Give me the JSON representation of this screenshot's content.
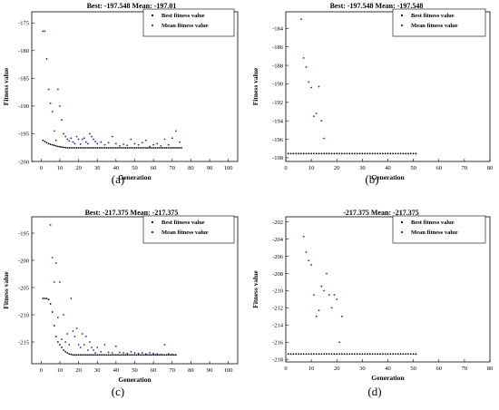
{
  "chart_data": [
    {
      "type": "scatter",
      "title": "Best: -197.548 Mean: -197.01",
      "xlabel": "Generation",
      "ylabel": "Fitness value",
      "xlim": [
        -5,
        105
      ],
      "ylim": [
        -200,
        -173
      ],
      "xticks": [
        0,
        10,
        20,
        30,
        40,
        50,
        60,
        70,
        80,
        90,
        100
      ],
      "yticks": [
        -175,
        -180,
        -185,
        -190,
        -195,
        -200
      ],
      "legend_position": "top-right",
      "caption": "(a)",
      "series": [
        {
          "name": "Best fitness value",
          "color": "#000000",
          "x": [
            1,
            2,
            3,
            4,
            5,
            6,
            7,
            8,
            9,
            10,
            11,
            12,
            13,
            14,
            15,
            16,
            17,
            18,
            19,
            20,
            21,
            22,
            23,
            24,
            25,
            26,
            27,
            28,
            29,
            30,
            31,
            32,
            33,
            34,
            35,
            36,
            37,
            38,
            39,
            40,
            41,
            42,
            43,
            44,
            45,
            46,
            47,
            48,
            49,
            50,
            51,
            52,
            53,
            54,
            55,
            56,
            57,
            58,
            59,
            60,
            61,
            62,
            63,
            64,
            65,
            66,
            67,
            68,
            69,
            70,
            71,
            72,
            73,
            74,
            75
          ],
          "y": [
            -196.2,
            -196.4,
            -196.6,
            -196.8,
            -196.9,
            -197.0,
            -197.1,
            -197.2,
            -197.3,
            -197.35,
            -197.4,
            -197.45,
            -197.5,
            -197.52,
            -197.54,
            -197.548,
            -197.548,
            -197.548,
            -197.548,
            -197.548,
            -197.548,
            -197.548,
            -197.548,
            -197.548,
            -197.548,
            -197.548,
            -197.548,
            -197.548,
            -197.548,
            -197.548,
            -197.548,
            -197.548,
            -197.548,
            -197.548,
            -197.548,
            -197.548,
            -197.548,
            -197.548,
            -197.548,
            -197.548,
            -197.548,
            -197.548,
            -197.548,
            -197.548,
            -197.548,
            -197.548,
            -197.548,
            -197.548,
            -197.548,
            -197.548,
            -197.548,
            -197.548,
            -197.548,
            -197.548,
            -197.548,
            -197.548,
            -197.548,
            -197.548,
            -197.548,
            -197.548,
            -197.548,
            -197.548,
            -197.548,
            -197.548,
            -197.548,
            -197.548,
            -197.548,
            -197.548,
            -197.548,
            -197.548,
            -197.548,
            -197.548,
            -197.548,
            -197.548,
            -197.548
          ]
        },
        {
          "name": "Mean fitness value",
          "color": "#2020c0",
          "x": [
            1,
            2,
            3,
            4,
            5,
            6,
            7,
            8,
            9,
            10,
            11,
            12,
            13,
            14,
            15,
            16,
            17,
            18,
            19,
            20,
            21,
            22,
            23,
            24,
            25,
            26,
            27,
            28,
            29,
            30,
            32,
            34,
            36,
            38,
            40,
            42,
            44,
            46,
            48,
            50,
            52,
            54,
            56,
            58,
            60,
            62,
            64,
            66,
            68,
            70,
            72,
            74
          ],
          "y": [
            -176.5,
            -176.5,
            -181.5,
            -187.0,
            -189.5,
            -191.0,
            -194.5,
            -196.2,
            -187.0,
            -190.0,
            -192.5,
            -195.0,
            -195.5,
            -196.0,
            -196.3,
            -195.8,
            -196.5,
            -196.8,
            -195.5,
            -196.0,
            -196.9,
            -196.0,
            -195.8,
            -196.5,
            -196.8,
            -195.0,
            -195.5,
            -196.0,
            -196.4,
            -196.8,
            -196.5,
            -197.0,
            -196.6,
            -195.5,
            -196.8,
            -197.2,
            -196.9,
            -197.1,
            -196.0,
            -196.8,
            -197.0,
            -196.6,
            -196.2,
            -197.3,
            -197.0,
            -196.8,
            -197.2,
            -196.0,
            -197.0,
            -195.8,
            -194.5,
            -196.5
          ]
        }
      ]
    },
    {
      "type": "scatter",
      "title": "Best: -197.548 Mean: -197.548",
      "xlabel": "Generation",
      "ylabel": "Fitness value",
      "xlim": [
        0,
        80
      ],
      "ylim": [
        -198.4,
        -182.2
      ],
      "xticks": [
        0,
        10,
        20,
        30,
        40,
        50,
        60,
        70,
        80
      ],
      "yticks": [
        -184,
        -186,
        -188,
        -190,
        -192,
        -194,
        -196,
        -198
      ],
      "legend_position": "top-right",
      "caption": "(b)",
      "series": [
        {
          "name": "Best fitness value",
          "color": "#000000",
          "x": [
            1,
            2,
            3,
            4,
            5,
            6,
            7,
            8,
            9,
            10,
            11,
            12,
            13,
            14,
            15,
            16,
            17,
            18,
            19,
            20,
            21,
            22,
            23,
            24,
            25,
            26,
            27,
            28,
            29,
            30,
            31,
            32,
            33,
            34,
            35,
            36,
            37,
            38,
            39,
            40,
            41,
            42,
            43,
            44,
            45,
            46,
            47,
            48,
            49,
            50,
            51
          ],
          "y": [
            -197.548,
            -197.548,
            -197.548,
            -197.548,
            -197.548,
            -197.548,
            -197.548,
            -197.548,
            -197.548,
            -197.548,
            -197.548,
            -197.548,
            -197.548,
            -197.548,
            -197.548,
            -197.548,
            -197.548,
            -197.548,
            -197.548,
            -197.548,
            -197.548,
            -197.548,
            -197.548,
            -197.548,
            -197.548,
            -197.548,
            -197.548,
            -197.548,
            -197.548,
            -197.548,
            -197.548,
            -197.548,
            -197.548,
            -197.548,
            -197.548,
            -197.548,
            -197.548,
            -197.548,
            -197.548,
            -197.548,
            -197.548,
            -197.548,
            -197.548,
            -197.548,
            -197.548,
            -197.548,
            -197.548,
            -197.548,
            -197.548,
            -197.548,
            -197.548
          ]
        },
        {
          "name": "Mean fitness value",
          "color": "#2020c0",
          "x": [
            6,
            7,
            8,
            9,
            10,
            11,
            12,
            13,
            14,
            15
          ],
          "y": [
            -183.0,
            -187.2,
            -188.2,
            -189.8,
            -190.4,
            -193.5,
            -193.2,
            -190.3,
            -194.0,
            -195.9
          ]
        }
      ]
    },
    {
      "type": "scatter",
      "title": "Best: -217.375 Mean: -217.375",
      "xlabel": "Generation",
      "ylabel": "Fitness value",
      "xlim": [
        -5,
        105
      ],
      "ylim": [
        -219,
        -192
      ],
      "xticks": [
        0,
        10,
        20,
        30,
        40,
        50,
        60,
        70,
        80,
        90,
        100
      ],
      "yticks": [
        -195,
        -200,
        -205,
        -210,
        -215
      ],
      "legend_position": "top-right",
      "caption": "(c)",
      "series": [
        {
          "name": "Best fitness value",
          "color": "#000000",
          "x": [
            1,
            2,
            3,
            4,
            5,
            6,
            7,
            8,
            9,
            10,
            11,
            12,
            13,
            14,
            15,
            16,
            17,
            18,
            19,
            20,
            21,
            22,
            23,
            24,
            25,
            26,
            27,
            28,
            29,
            30,
            31,
            32,
            33,
            34,
            35,
            36,
            37,
            38,
            39,
            40,
            41,
            42,
            43,
            44,
            45,
            46,
            47,
            48,
            49,
            50,
            51,
            52,
            53,
            54,
            55,
            56,
            57,
            58,
            59,
            60,
            61,
            62,
            63,
            64,
            65,
            66,
            67,
            68,
            69,
            70,
            71,
            72
          ],
          "y": [
            -207.0,
            -207.0,
            -207.0,
            -207.2,
            -208.0,
            -209.5,
            -212.0,
            -214.0,
            -215.0,
            -215.5,
            -216.0,
            -216.5,
            -216.8,
            -217.0,
            -217.2,
            -217.3,
            -217.375,
            -217.375,
            -217.375,
            -217.375,
            -217.375,
            -217.375,
            -217.375,
            -217.375,
            -217.375,
            -217.375,
            -217.375,
            -217.375,
            -217.375,
            -217.375,
            -217.375,
            -217.375,
            -217.375,
            -217.375,
            -217.375,
            -217.375,
            -217.375,
            -217.375,
            -217.375,
            -217.375,
            -217.375,
            -217.375,
            -217.375,
            -217.375,
            -217.375,
            -217.375,
            -217.375,
            -217.375,
            -217.375,
            -217.375,
            -217.375,
            -217.375,
            -217.375,
            -217.375,
            -217.375,
            -217.375,
            -217.375,
            -217.375,
            -217.375,
            -217.375,
            -217.375,
            -217.375,
            -217.375,
            -217.375,
            -217.375,
            -217.375,
            -217.375,
            -217.375,
            -217.375,
            -217.375,
            -217.375,
            -217.375
          ]
        },
        {
          "name": "Mean fitness value",
          "color": "#2020c0",
          "x": [
            5,
            6,
            7,
            8,
            9,
            10,
            11,
            12,
            13,
            14,
            15,
            16,
            17,
            18,
            19,
            20,
            21,
            22,
            23,
            24,
            25,
            26,
            27,
            28,
            29,
            30,
            32,
            34,
            36,
            38,
            40,
            42,
            44,
            46,
            48,
            50,
            52,
            54,
            56,
            58,
            60,
            62,
            64,
            66,
            68,
            70
          ],
          "y": [
            -193.5,
            -199.5,
            -204.0,
            -200.5,
            -210.5,
            -204.0,
            -214.5,
            -210.0,
            -215.0,
            -213.5,
            -215.5,
            -207.0,
            -213.0,
            -214.0,
            -212.5,
            -215.5,
            -216.0,
            -213.5,
            -215.5,
            -214.0,
            -216.5,
            -215.0,
            -216.0,
            -216.5,
            -217.0,
            -216.0,
            -216.8,
            -215.5,
            -216.9,
            -217.0,
            -215.8,
            -216.9,
            -217.0,
            -217.1,
            -216.8,
            -217.0,
            -217.1,
            -217.0,
            -217.2,
            -217.0,
            -217.1,
            -217.2,
            -217.3,
            -215.5,
            -217.2,
            -217.3
          ]
        }
      ]
    },
    {
      "type": "scatter",
      "title": "-217.375 Mean: -217.375",
      "xlabel": "Generation",
      "ylabel": "Fitness value",
      "xlim": [
        0,
        80
      ],
      "ylim": [
        -218.3,
        -201.4
      ],
      "xticks": [
        0,
        10,
        20,
        30,
        40,
        50,
        60,
        70,
        80
      ],
      "yticks": [
        -202,
        -204,
        -206,
        -208,
        -210,
        -212,
        -214,
        -216,
        -218
      ],
      "legend_position": "top-right",
      "caption": "(d)",
      "series": [
        {
          "name": "Best fitness value",
          "color": "#000000",
          "x": [
            1,
            2,
            3,
            4,
            5,
            6,
            7,
            8,
            9,
            10,
            11,
            12,
            13,
            14,
            15,
            16,
            17,
            18,
            19,
            20,
            21,
            22,
            23,
            24,
            25,
            26,
            27,
            28,
            29,
            30,
            31,
            32,
            33,
            34,
            35,
            36,
            37,
            38,
            39,
            40,
            41,
            42,
            43,
            44,
            45,
            46,
            47,
            48,
            49,
            50,
            51
          ],
          "y": [
            -217.375,
            -217.375,
            -217.375,
            -217.375,
            -217.375,
            -217.375,
            -217.375,
            -217.375,
            -217.375,
            -217.375,
            -217.375,
            -217.375,
            -217.375,
            -217.375,
            -217.375,
            -217.375,
            -217.375,
            -217.375,
            -217.375,
            -217.375,
            -217.375,
            -217.375,
            -217.375,
            -217.375,
            -217.375,
            -217.375,
            -217.375,
            -217.375,
            -217.375,
            -217.375,
            -217.375,
            -217.375,
            -217.375,
            -217.375,
            -217.375,
            -217.375,
            -217.375,
            -217.375,
            -217.375,
            -217.375,
            -217.375,
            -217.375,
            -217.375,
            -217.375,
            -217.375,
            -217.375,
            -217.375,
            -217.375,
            -217.375,
            -217.375,
            -217.375
          ]
        },
        {
          "name": "Mean fitness value",
          "color": "#2020c0",
          "x": [
            7,
            8,
            9,
            10,
            11,
            12,
            13,
            14,
            15,
            16,
            17,
            18,
            19,
            20,
            21,
            22
          ],
          "y": [
            -203.7,
            -205.5,
            -206.5,
            -207.0,
            -210.5,
            -213.0,
            -212.3,
            -209.5,
            -210.0,
            -208.0,
            -210.5,
            -212.0,
            -210.5,
            -211.0,
            -216.0,
            -213.0
          ]
        }
      ]
    }
  ]
}
